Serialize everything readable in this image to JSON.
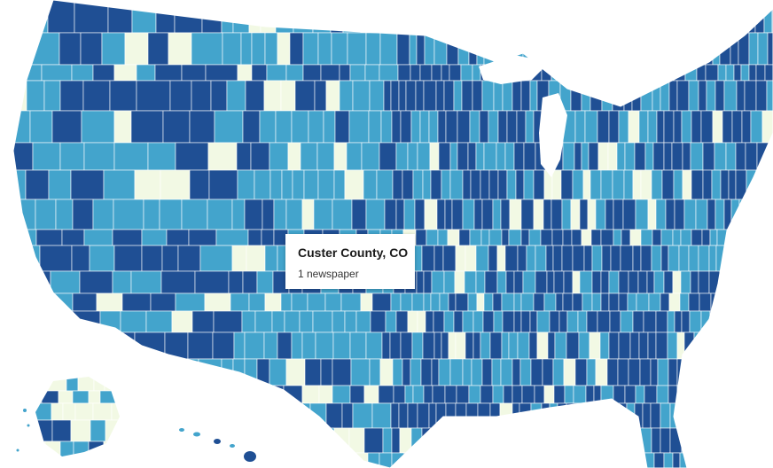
{
  "map": {
    "subject": "US counties choropleth",
    "colors": {
      "zero": "#f2f9e4",
      "one": "#43a4cc",
      "many": "#1f4f94",
      "border": "#ffffff",
      "tooltip_bg": "#ffffff",
      "tooltip_text": "#1a1a1a"
    }
  },
  "tooltip": {
    "title": "Custer County, CO",
    "subtitle": "1 newspaper"
  }
}
